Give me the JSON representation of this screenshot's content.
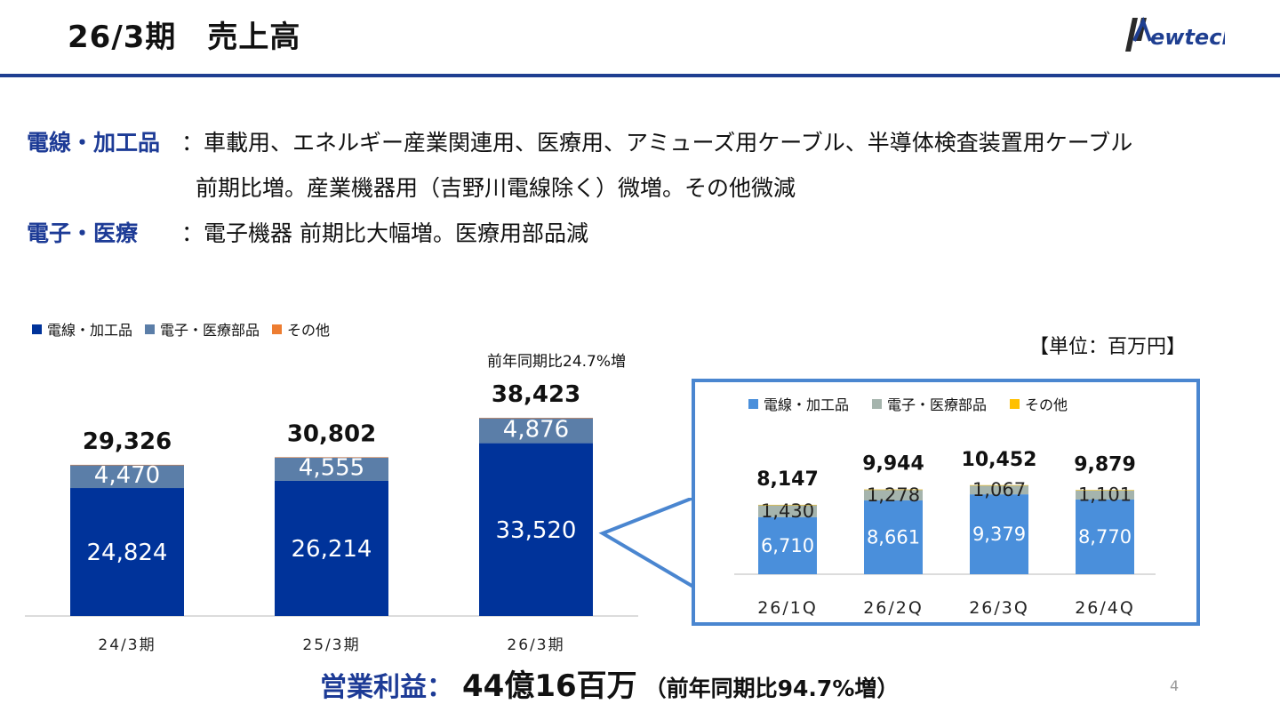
{
  "header": {
    "title": "26/3期　売上高",
    "logo_text": "Newtech"
  },
  "segments": [
    {
      "name": "電線・加工品",
      "line1": "：車載用、エネルギー産業関連用、医療用、アミューズ用ケーブル、半導体検査装置用ケーブル",
      "line2": "前期比増。産業機器用（吉野川電線除く）微増。その他微減"
    },
    {
      "name": "電子・医療",
      "line1": "：電子機器 前期比大幅増。医療用部品減"
    }
  ],
  "unit_label": "【単位：百万円】",
  "yoy_note": "前年同期比24.7%増",
  "operating_profit": {
    "label": "営業利益：",
    "value": "44億16百万",
    "yoy": "（前年同期比94.7%増）"
  },
  "page_number": "4",
  "colors": {
    "accent_blue": "#1d3b96",
    "wire": "#00339a",
    "electronic": "#5b7ea8",
    "other": "#ed7d31",
    "q_wire": "#4a8fdb",
    "q_electronic": "#a5b4ad",
    "q_other": "#ffc000"
  },
  "chart_data": [
    {
      "type": "bar",
      "stacked": true,
      "categories": [
        "24/3期",
        "25/3期",
        "26/3期"
      ],
      "series": [
        {
          "name": "電線・加工品",
          "values": [
            24824,
            26214,
            33520
          ]
        },
        {
          "name": "電子・医療部品",
          "values": [
            4470,
            4555,
            4876
          ]
        },
        {
          "name": "その他",
          "values": [
            32,
            33,
            27
          ]
        }
      ],
      "series_labels": {
        "wire": [
          "24,824",
          "26,214",
          "33,520"
        ],
        "electronic": [
          "4,470",
          "4,555",
          "4,876"
        ]
      },
      "totals": [
        29326,
        30802,
        38423
      ],
      "total_labels": [
        "29,326",
        "30,802",
        "38,423"
      ],
      "ylim": [
        0,
        40000
      ],
      "legend_position": "top-left",
      "grid": false
    },
    {
      "type": "bar",
      "stacked": true,
      "categories": [
        "26/1Q",
        "26/2Q",
        "26/3Q",
        "26/4Q"
      ],
      "series": [
        {
          "name": "電線・加工品",
          "values": [
            6710,
            8661,
            9379,
            8770
          ]
        },
        {
          "name": "電子・医療部品",
          "values": [
            1430,
            1278,
            1067,
            1101
          ]
        },
        {
          "name": "その他",
          "values": [
            7,
            5,
            6,
            8
          ]
        }
      ],
      "series_labels": {
        "wire": [
          "6,710",
          "8,661",
          "9,379",
          "8,770"
        ],
        "electronic": [
          "1,430",
          "1,278",
          "1,067",
          "1,101"
        ]
      },
      "totals": [
        8147,
        9944,
        10452,
        9879
      ],
      "total_labels": [
        "8,147",
        "9,944",
        "10,452",
        "9,879"
      ],
      "ylim": [
        0,
        12000
      ],
      "legend_position": "top",
      "grid": false
    }
  ]
}
